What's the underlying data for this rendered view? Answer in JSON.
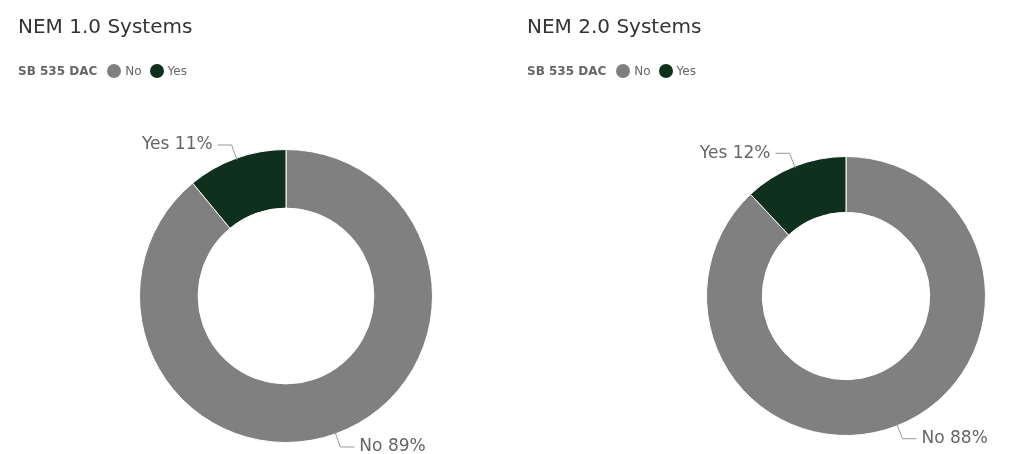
{
  "chart_data": [
    {
      "type": "donut",
      "title": "NEM 1.0 Systems",
      "legend_title": "SB 535 DAC",
      "legend": "top left",
      "categories": [
        "No",
        "Yes"
      ],
      "values": [
        89,
        11
      ],
      "colors": [
        "#808080",
        "#10301e"
      ],
      "value_labels": [
        "No 89%",
        "Yes 11%"
      ]
    },
    {
      "type": "donut",
      "title": "NEM 2.0 Systems",
      "legend_title": "SB 535 DAC",
      "legend": "top left",
      "categories": [
        "No",
        "Yes"
      ],
      "values": [
        88,
        12
      ],
      "colors": [
        "#808080",
        "#10301e"
      ],
      "value_labels": [
        "No 88%",
        "Yes 12%"
      ]
    }
  ]
}
